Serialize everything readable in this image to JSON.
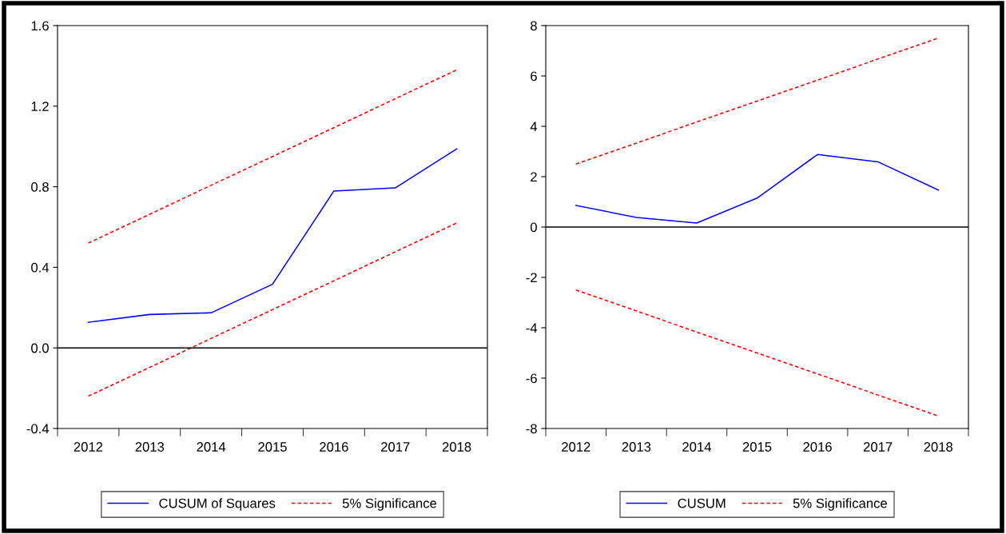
{
  "chart_data": [
    {
      "type": "line",
      "categories": [
        "2012",
        "2013",
        "2014",
        "2015",
        "2016",
        "2017",
        "2018"
      ],
      "ylim": [
        -0.4,
        1.6
      ],
      "yticks": [
        {
          "value": -0.4,
          "label": "-0.4"
        },
        {
          "value": 0,
          "label": "0.0"
        },
        0.4,
        0.8,
        1.2,
        1.6
      ],
      "grid": false,
      "legend": "bottom",
      "series": [
        {
          "name": "CUSUM of Squares",
          "color": "#0000ff",
          "line_style": "solid",
          "values": [
            0.127,
            0.166,
            0.174,
            0.316,
            0.779,
            0.794,
            0.988
          ]
        },
        {
          "name": "5% Significance",
          "color": "#ff0000",
          "line_style": "dashed",
          "values": [
            0.52,
            0.663,
            0.807,
            0.95,
            1.093,
            1.237,
            1.38
          ]
        },
        {
          "color": "#ff0000",
          "line_style": "dashed",
          "values": [
            -0.24,
            -0.097,
            0.047,
            0.19,
            0.333,
            0.477,
            0.62
          ]
        }
      ],
      "ref_lines": [
        {
          "axis": "y",
          "value": 0,
          "color": "#000000"
        }
      ]
    },
    {
      "type": "line",
      "categories": [
        "2012",
        "2013",
        "2014",
        "2015",
        "2016",
        "2017",
        "2018"
      ],
      "ylim": [
        -8,
        8
      ],
      "yticks": [
        -8,
        -6,
        -4,
        -2,
        0,
        2,
        4,
        6,
        8
      ],
      "grid": false,
      "legend": "bottom",
      "series": [
        {
          "name": "CUSUM",
          "color": "#0000ff",
          "line_style": "solid",
          "values": [
            0.86,
            0.38,
            0.16,
            1.15,
            2.88,
            2.59,
            1.47
          ]
        },
        {
          "name": "5% Significance",
          "color": "#ff0000",
          "line_style": "dashed",
          "values": [
            2.5,
            3.33,
            4.17,
            5.0,
            5.83,
            6.67,
            7.5
          ]
        },
        {
          "color": "#ff0000",
          "line_style": "dashed",
          "values": [
            -2.5,
            -3.33,
            -4.17,
            -5.0,
            -5.83,
            -6.67,
            -7.5
          ]
        }
      ],
      "ref_lines": [
        {
          "axis": "y",
          "value": 0,
          "color": "#000000"
        }
      ]
    }
  ]
}
